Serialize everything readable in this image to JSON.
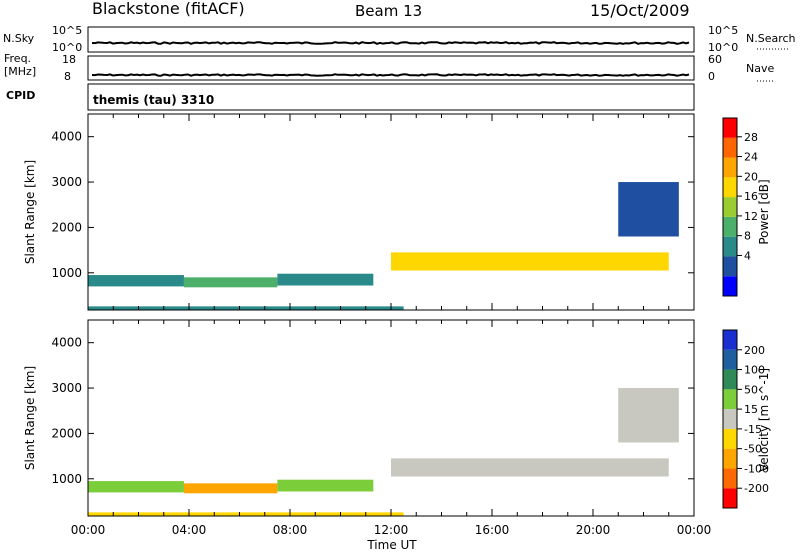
{
  "header": {
    "station": "Blackstone (fitACF)",
    "beam": "Beam 13",
    "date": "15/Oct/2009"
  },
  "strip1": {
    "left_label": "N.Sky",
    "left_ticks": [
      "10^5",
      "10^0"
    ],
    "right_ticks": [
      "10^5",
      "10^0"
    ],
    "right_label": "N.Search"
  },
  "strip2": {
    "left_label_1": "Freq.",
    "left_label_2": "[MHz]",
    "left_ticks": [
      "18",
      "8"
    ],
    "right_ticks": [
      "60",
      "0"
    ],
    "right_label": "Nave"
  },
  "strip3": {
    "left_label": "CPID",
    "program": "themis (tau) 3310"
  },
  "x_axis": {
    "label": "Time UT",
    "ticks": [
      "00:00",
      "04:00",
      "08:00",
      "12:00",
      "16:00",
      "20:00",
      "00:00"
    ]
  },
  "power_panel": {
    "ylabel": "Slant Range [km]",
    "yticks": [
      "1000",
      "2000",
      "3000",
      "4000"
    ],
    "colorbar_label": "Power [dB]",
    "colorbar_ticks": [
      "4",
      "8",
      "12",
      "16",
      "20",
      "24",
      "28"
    ],
    "colors": [
      "#0000ff",
      "#1f4fa0",
      "#2a8a8a",
      "#4caf6a",
      "#9acd32",
      "#ffd700",
      "#ffa500",
      "#ff6600",
      "#ff0000"
    ]
  },
  "velocity_panel": {
    "ylabel": "Slant Range [km]",
    "yticks": [
      "1000",
      "2000",
      "3000",
      "4000"
    ],
    "colorbar_label": "Velocity [m s^-1]",
    "colorbar_ticks": [
      "200",
      "100",
      "50",
      "15",
      "-15",
      "-50",
      "-100",
      "-200"
    ],
    "colors": [
      "#1a2fd0",
      "#1f5f9f",
      "#2e8b57",
      "#7ccd3a",
      "#c8c8c0",
      "#ffd700",
      "#ffa500",
      "#ff6a00",
      "#ff0000"
    ]
  },
  "chart_data": {
    "type": "heatmap",
    "x_range_hours": [
      0,
      24
    ],
    "y_range_km": [
      180,
      4500
    ],
    "regions": [
      {
        "t0": 0.0,
        "t1": 3.8,
        "r0": 700,
        "r1": 950,
        "power": 10,
        "velocity": 30
      },
      {
        "t0": 3.8,
        "t1": 7.5,
        "r0": 680,
        "r1": 900,
        "power": 14,
        "velocity": -40
      },
      {
        "t0": 7.5,
        "t1": 11.3,
        "r0": 720,
        "r1": 980,
        "power": 12,
        "velocity": 25
      },
      {
        "t0": 12.0,
        "t1": 23.0,
        "r0": 1050,
        "r1": 1450,
        "power": 20,
        "velocity": 0
      },
      {
        "t0": 21.0,
        "t1": 23.4,
        "r0": 1800,
        "r1": 3000,
        "power": 8,
        "velocity": 5
      },
      {
        "t0": 0.0,
        "t1": 12.5,
        "r0": 190,
        "r1": 260,
        "power": 9,
        "velocity": -30
      }
    ]
  }
}
